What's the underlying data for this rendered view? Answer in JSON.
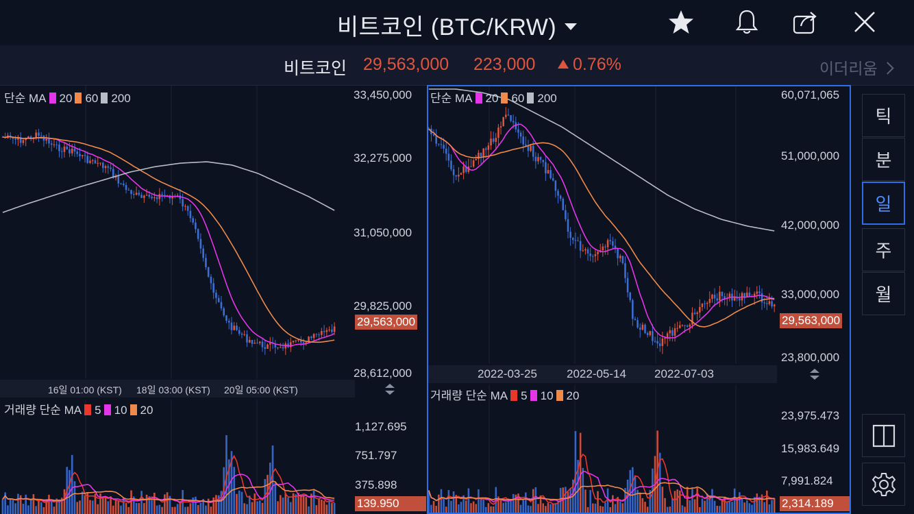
{
  "header": {
    "title": "비트코인 (BTC/KRW)",
    "icons": [
      "star-icon",
      "bell-icon",
      "share-icon",
      "close-icon"
    ]
  },
  "ticker": {
    "name": "비트코인",
    "price": "29,563,000",
    "change": "223,000",
    "change_pct": "0.76%",
    "next_coin": "이더리움",
    "up_color": "#e0553d"
  },
  "left_chart": {
    "ma_label": "단순 MA",
    "ma_periods": [
      "20",
      "60",
      "200"
    ],
    "y_labels": [
      "33,450,000",
      "32,275,000",
      "31,050,000",
      "29,825,000",
      "28,612,000"
    ],
    "current_price": "29,563,000",
    "time_labels": [
      "16일 01:00 (KST)",
      "18일 03:00 (KST)",
      "20일 05:00 (KST)"
    ],
    "volume_label": "거래량 단순 MA",
    "volume_ma_periods": [
      "5",
      "10",
      "20"
    ],
    "volume_y_labels": [
      "1,127.695",
      "751.797",
      "375.898"
    ],
    "current_volume": "139.950"
  },
  "right_chart": {
    "ma_label": "단순 MA",
    "ma_periods": [
      "20",
      "60",
      "200"
    ],
    "y_labels": [
      "60,071,065",
      "51,000,000",
      "42,000,000",
      "33,000,000",
      "23,800,000"
    ],
    "current_price": "29,563,000",
    "date_labels": [
      "2022-03-25",
      "2022-05-14",
      "2022-07-03"
    ],
    "volume_label": "거래량 단순 MA",
    "volume_ma_periods": [
      "5",
      "10",
      "20"
    ],
    "volume_y_labels": [
      "23,975.473",
      "15,983.649",
      "7,991.824"
    ],
    "current_volume": "2,314.189"
  },
  "sidebar": {
    "intervals": [
      "틱",
      "분",
      "일",
      "주",
      "월"
    ],
    "active_interval": "일",
    "layout_icon": "split-layout-icon",
    "settings_icon": "gear-icon"
  },
  "colors": {
    "ma20": "#e535e8",
    "ma60": "#f08a4b",
    "ma200": "#b8bcc4",
    "vol_ma5": "#e8382e",
    "up_candle": "#e0553d",
    "down_candle": "#3b6fd6",
    "accent": "#2e6ee6"
  }
}
